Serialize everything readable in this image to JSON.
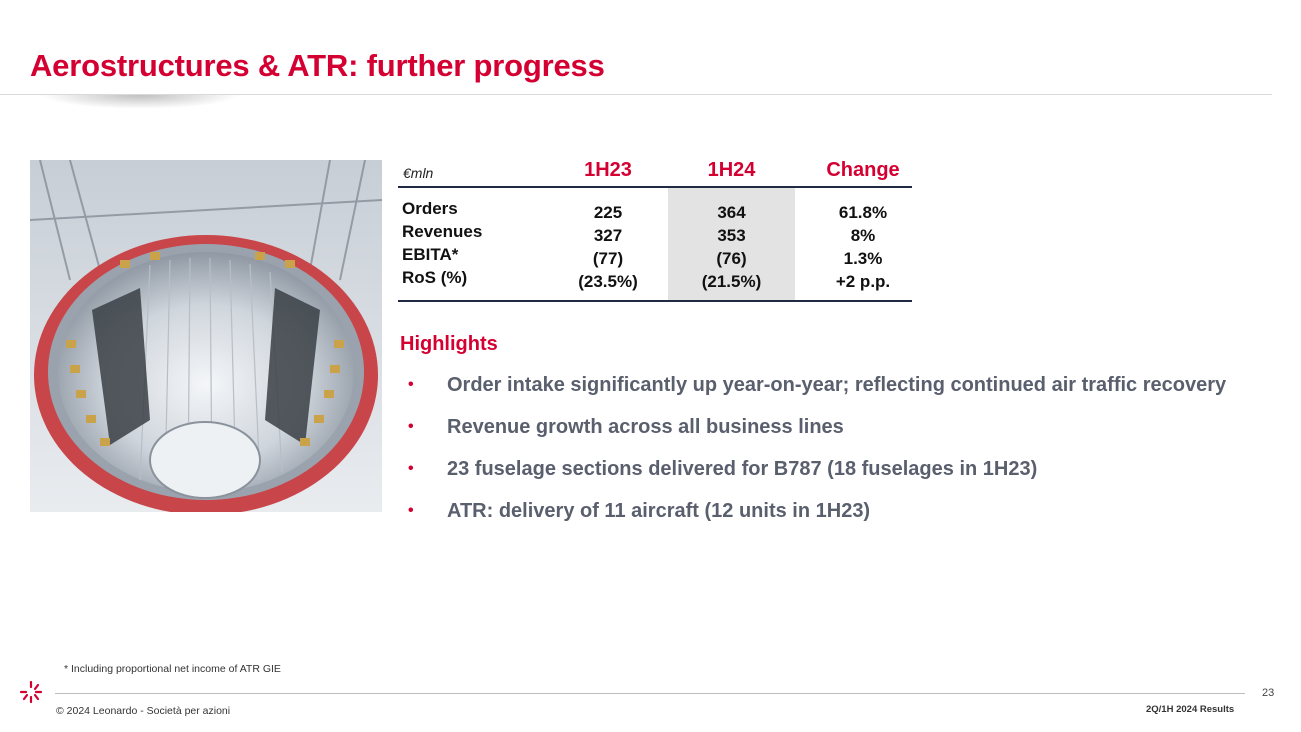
{
  "title": "Aerostructures & ATR: further progress",
  "table": {
    "unit_label": "€mln",
    "columns": [
      "1H23",
      "1H24",
      "Change"
    ],
    "rows": [
      {
        "label": "Orders",
        "values": [
          "225",
          "364",
          "61.8%"
        ]
      },
      {
        "label": "Revenues",
        "values": [
          "327",
          "353",
          "8%"
        ]
      },
      {
        "label": "EBITA*",
        "values": [
          "(77)",
          "(76)",
          "1.3%"
        ]
      },
      {
        "label": "RoS (%)",
        "values": [
          "(23.5%)",
          "(21.5%)",
          "+2 p.p."
        ]
      }
    ]
  },
  "highlights": {
    "title": "Highlights",
    "bullet_marker": "•",
    "items": [
      "Order intake significantly up year-on-year; reflecting continued air traffic recovery",
      "Revenue growth across all business lines",
      "23 fuselage sections delivered for B787 (18 fuselages in 1H23)",
      "ATR: delivery of 11 aircraft (12 units in 1H23)"
    ]
  },
  "footnote": "* Including proportional net income of  ATR GIE",
  "footer": {
    "copyright": "© 2024 Leonardo - Società per azioni",
    "page_number": "23",
    "report_label": "2Q/1H 2024 Results"
  },
  "colors": {
    "accent": "#d50032",
    "bullet_text": "#5a5f6e",
    "highlight_column": "#e3e3e3",
    "rule": "#1f2a44"
  },
  "icons": {
    "logo": "leonardo-logo",
    "photo": "fuselage-section-photo"
  }
}
